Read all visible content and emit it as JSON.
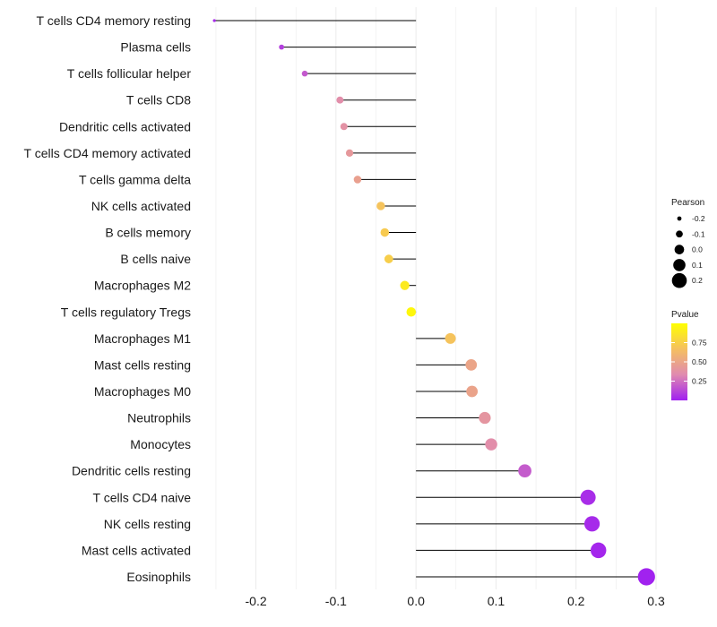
{
  "chart_data": {
    "type": "lollipop",
    "title": "",
    "xlabel": "",
    "ylabel": "",
    "xlim": [
      -0.26,
      0.3
    ],
    "x_ticks": [
      -0.2,
      -0.1,
      0.0,
      0.1,
      0.2,
      0.3
    ],
    "x_tick_labels": [
      "-0.2",
      "-0.1",
      "0.0",
      "0.1",
      "0.2",
      "0.3"
    ],
    "grid": true,
    "points": [
      {
        "label": "T cells CD4 memory resting",
        "pearson": -0.252,
        "pvalue": 0.03
      },
      {
        "label": "Plasma cells",
        "pearson": -0.168,
        "pvalue": 0.1
      },
      {
        "label": "T cells follicular helper",
        "pearson": -0.139,
        "pvalue": 0.18
      },
      {
        "label": "T cells CD8",
        "pearson": -0.095,
        "pvalue": 0.36
      },
      {
        "label": "Dendritic cells activated",
        "pearson": -0.09,
        "pvalue": 0.38
      },
      {
        "label": "T cells CD4 memory activated",
        "pearson": -0.083,
        "pvalue": 0.42
      },
      {
        "label": "T cells gamma delta",
        "pearson": -0.073,
        "pvalue": 0.47
      },
      {
        "label": "NK cells activated",
        "pearson": -0.044,
        "pvalue": 0.68
      },
      {
        "label": "B cells memory",
        "pearson": -0.039,
        "pvalue": 0.72
      },
      {
        "label": "B cells naive",
        "pearson": -0.034,
        "pvalue": 0.74
      },
      {
        "label": "Macrophages M2",
        "pearson": -0.014,
        "pvalue": 0.89
      },
      {
        "label": "T cells regulatory  Tregs ",
        "pearson": -0.006,
        "pvalue": 0.96
      },
      {
        "label": "Macrophages M1",
        "pearson": 0.043,
        "pvalue": 0.68
      },
      {
        "label": "Mast cells resting",
        "pearson": 0.069,
        "pvalue": 0.5
      },
      {
        "label": "Macrophages M0",
        "pearson": 0.07,
        "pvalue": 0.49
      },
      {
        "label": "Neutrophils",
        "pearson": 0.086,
        "pvalue": 0.4
      },
      {
        "label": "Monocytes",
        "pearson": 0.094,
        "pvalue": 0.36
      },
      {
        "label": "Dendritic cells resting",
        "pearson": 0.136,
        "pvalue": 0.19
      },
      {
        "label": "T cells CD4 naive",
        "pearson": 0.215,
        "pvalue": 0.04
      },
      {
        "label": "NK cells resting",
        "pearson": 0.22,
        "pvalue": 0.03
      },
      {
        "label": "Mast cells activated",
        "pearson": 0.228,
        "pvalue": 0.02
      },
      {
        "label": "Eosinophils",
        "pearson": 0.288,
        "pvalue": 0.005
      }
    ],
    "legend_size": {
      "title": "Pearson",
      "labels": [
        "-0.2",
        "-0.1",
        "0.0",
        "0.1",
        "0.2"
      ],
      "values": [
        -0.2,
        -0.1,
        0.0,
        0.1,
        0.2
      ]
    },
    "legend_color": {
      "title": "Pvalue",
      "labels": [
        "0.75",
        "0.50",
        "0.25"
      ],
      "values": [
        0.75,
        0.5,
        0.25
      ],
      "range": [
        0.0,
        1.0
      ],
      "colors": [
        "#a020f0",
        "#e08ab0",
        "#f5c060",
        "#ffff00"
      ]
    },
    "segment_color": "#000000",
    "grid_color": "#ebebeb"
  }
}
